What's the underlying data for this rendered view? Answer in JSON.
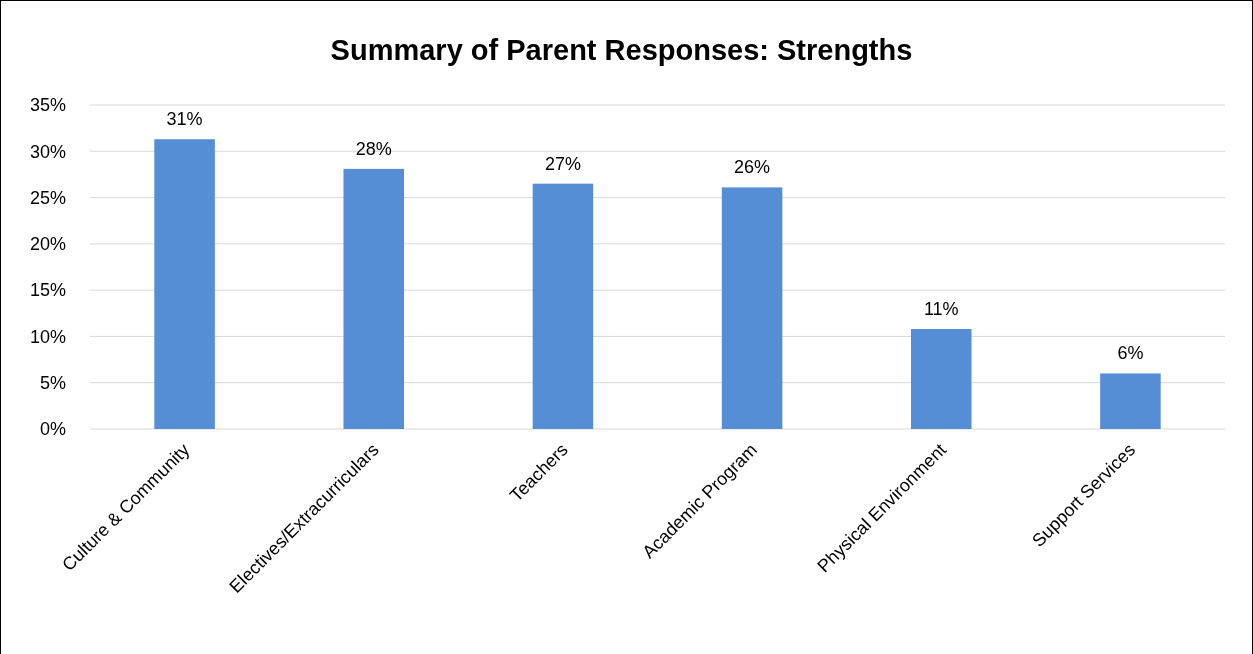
{
  "chart_data": {
    "type": "bar",
    "title": "Summary of Parent Responses: Strengths",
    "categories": [
      "Culture & Community",
      "Electives/Extracurriculars",
      "Teachers",
      "Academic Program",
      "Physical Environment",
      "Support Services"
    ],
    "values": [
      31.3,
      28.1,
      26.5,
      26.1,
      10.8,
      6.0
    ],
    "value_labels": [
      "31%",
      "28%",
      "27%",
      "26%",
      "11%",
      "6%"
    ],
    "color": "#558ed5",
    "ylim": [
      0,
      35
    ],
    "yticks": [
      {
        "value": 0,
        "label": "0%"
      },
      {
        "value": 5,
        "label": "5%"
      },
      {
        "value": 10,
        "label": "10%"
      },
      {
        "value": 15,
        "label": "15%"
      },
      {
        "value": 20,
        "label": "20%"
      },
      {
        "value": 25,
        "label": "25%"
      },
      {
        "value": 30,
        "label": "30%"
      },
      {
        "value": 35,
        "label": "35%"
      }
    ],
    "grid": "y"
  }
}
